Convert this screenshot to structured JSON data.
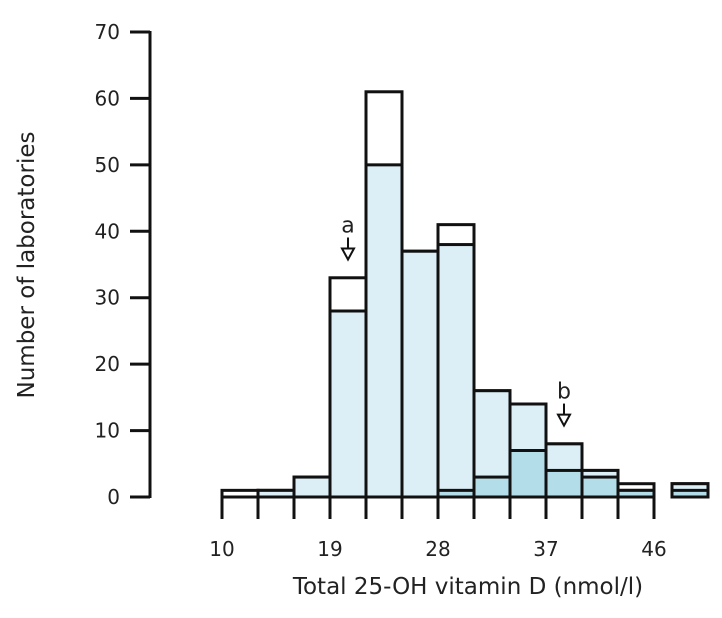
{
  "chart_data": {
    "type": "bar",
    "subtype": "stacked-histogram",
    "xlabel": "Total 25-OH vitamin D (nmol/l)",
    "ylabel": "Number of laboratories",
    "ylim": [
      0,
      70
    ],
    "xlim": [
      10,
      51
    ],
    "yticks": [
      0,
      10,
      20,
      30,
      40,
      50,
      60,
      70
    ],
    "xticks": [
      10,
      19,
      28,
      37,
      46
    ],
    "bin_edges_ticks": [
      10,
      13,
      16,
      19,
      22,
      25,
      28,
      31,
      34,
      37,
      40,
      43,
      46
    ],
    "grid": false,
    "colors": {
      "total": "#ffffff",
      "light": "#dcEFF6",
      "dark": "#b3dde9",
      "stroke": "#111111"
    },
    "bins": [
      {
        "range": [
          10,
          13
        ],
        "total": 1,
        "light": 0,
        "dark": 0
      },
      {
        "range": [
          13,
          16
        ],
        "total": 1,
        "light": 1,
        "dark": 0
      },
      {
        "range": [
          16,
          19
        ],
        "total": 3,
        "light": 3,
        "dark": 0
      },
      {
        "range": [
          19,
          22
        ],
        "total": 33,
        "light": 28,
        "dark": 0
      },
      {
        "range": [
          22,
          25
        ],
        "total": 61,
        "light": 50,
        "dark": 0
      },
      {
        "range": [
          25,
          28
        ],
        "total": 37,
        "light": 37,
        "dark": 0
      },
      {
        "range": [
          28,
          31
        ],
        "total": 41,
        "light": 38,
        "dark": 1
      },
      {
        "range": [
          31,
          34
        ],
        "total": 16,
        "light": 16,
        "dark": 3
      },
      {
        "range": [
          34,
          37
        ],
        "total": 14,
        "light": 14,
        "dark": 7
      },
      {
        "range": [
          37,
          40
        ],
        "total": 8,
        "light": 8,
        "dark": 4
      },
      {
        "range": [
          40,
          43
        ],
        "total": 4,
        "light": 4,
        "dark": 3
      },
      {
        "range": [
          43,
          46
        ],
        "total": 2,
        "light": 1,
        "dark": 1
      },
      {
        "range": [
          47.5,
          50.5
        ],
        "total": 2,
        "light": 2,
        "dark": 1
      }
    ],
    "annotations": [
      {
        "label": "a",
        "x": 20.5,
        "y": 35
      },
      {
        "label": "b",
        "x": 38.5,
        "y": 10
      }
    ]
  }
}
